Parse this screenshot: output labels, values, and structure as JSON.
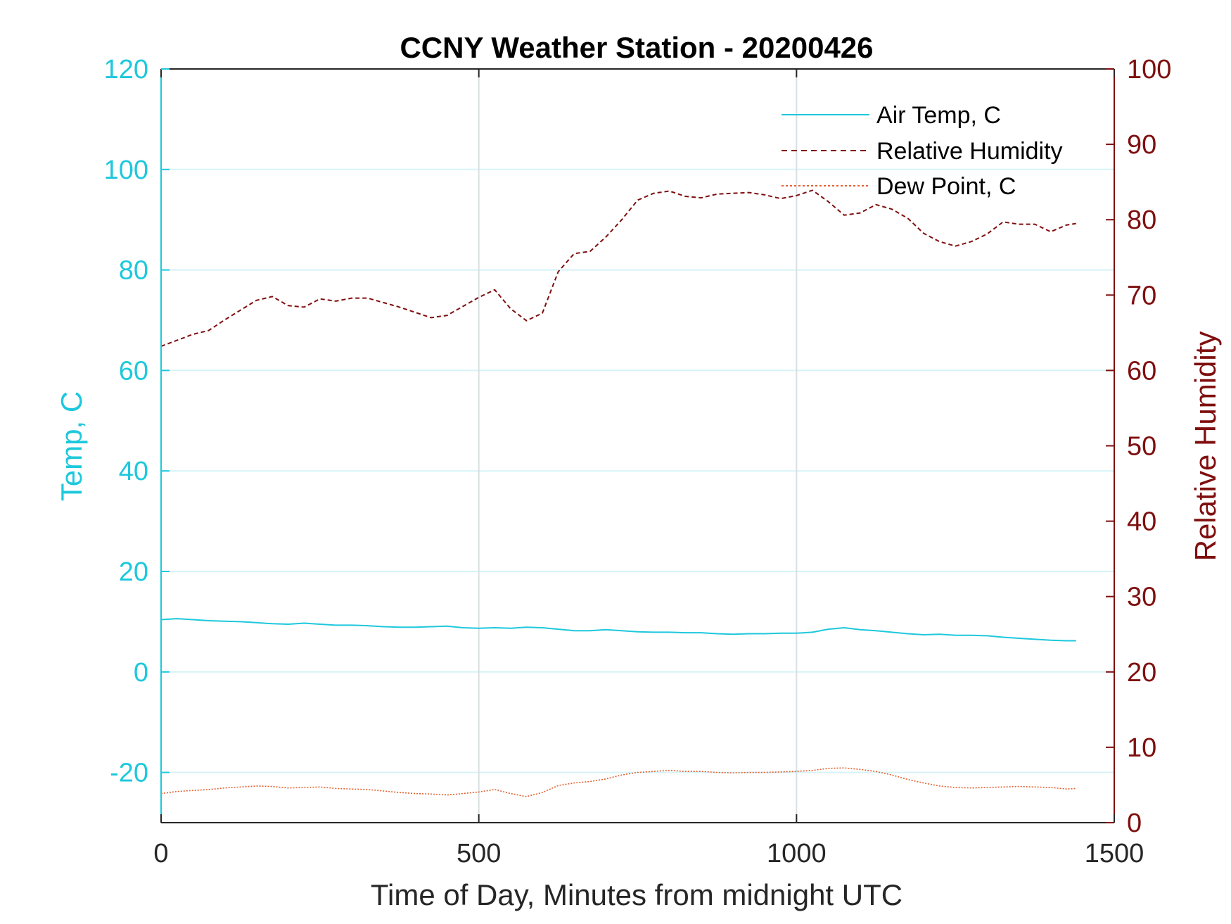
{
  "chart_data": {
    "type": "line",
    "title": "CCNY Weather Station - 20200426",
    "xlabel": "Time of Day, Minutes from midnight UTC",
    "ylabel_left": "Temp, C",
    "ylabel_right": "Relative Humidity",
    "xlim": [
      0,
      1500
    ],
    "ylim_left": [
      -30,
      120
    ],
    "ylim_right": [
      0,
      100
    ],
    "x_ticks": [
      "0",
      "500",
      "1000",
      "1500"
    ],
    "y_left_ticks": [
      "-20",
      "0",
      "20",
      "40",
      "60",
      "80",
      "100",
      "120"
    ],
    "y_right_ticks": [
      "0",
      "10",
      "20",
      "30",
      "40",
      "50",
      "60",
      "70",
      "80",
      "90",
      "100"
    ],
    "grid": true,
    "legend_position": "top-right",
    "colors": {
      "left_axis": "#1ec8dc",
      "right_axis": "#7f0f0f",
      "air_temp": "#1ec8dc",
      "humidity": "#7f0f0f",
      "dew_point": "#e2602e",
      "grid_horizontal": "#d6f3f8",
      "grid_vertical": "#d9dee2"
    },
    "series": [
      {
        "name": "Air Temp, C",
        "axis": "left",
        "style": "solid",
        "x": [
          0,
          25,
          50,
          75,
          100,
          125,
          150,
          175,
          200,
          225,
          250,
          275,
          300,
          325,
          350,
          375,
          400,
          425,
          450,
          475,
          500,
          525,
          550,
          575,
          600,
          625,
          650,
          675,
          700,
          725,
          750,
          775,
          800,
          825,
          850,
          875,
          900,
          925,
          950,
          975,
          1000,
          1025,
          1050,
          1075,
          1100,
          1125,
          1150,
          1175,
          1200,
          1225,
          1250,
          1275,
          1300,
          1325,
          1350,
          1375,
          1400,
          1425,
          1440
        ],
        "y": [
          10.4,
          10.6,
          10.4,
          10.2,
          10.1,
          10.0,
          9.8,
          9.6,
          9.5,
          9.7,
          9.5,
          9.3,
          9.3,
          9.2,
          9.0,
          8.9,
          8.9,
          9.0,
          9.1,
          8.8,
          8.7,
          8.8,
          8.7,
          8.9,
          8.8,
          8.5,
          8.2,
          8.2,
          8.4,
          8.2,
          8.0,
          7.9,
          7.9,
          7.8,
          7.8,
          7.6,
          7.5,
          7.6,
          7.6,
          7.7,
          7.7,
          7.9,
          8.5,
          8.8,
          8.4,
          8.2,
          7.9,
          7.6,
          7.4,
          7.5,
          7.3,
          7.3,
          7.2,
          6.9,
          6.7,
          6.5,
          6.3,
          6.2,
          6.2
        ]
      },
      {
        "name": "Relative Humidity",
        "axis": "right",
        "style": "dashed",
        "x": [
          0,
          25,
          50,
          75,
          100,
          125,
          150,
          175,
          200,
          225,
          250,
          275,
          300,
          325,
          350,
          375,
          400,
          425,
          450,
          475,
          500,
          525,
          550,
          575,
          600,
          625,
          650,
          675,
          700,
          725,
          750,
          775,
          800,
          825,
          850,
          875,
          900,
          925,
          950,
          975,
          1000,
          1025,
          1050,
          1075,
          1100,
          1125,
          1150,
          1175,
          1200,
          1225,
          1250,
          1275,
          1300,
          1325,
          1350,
          1375,
          1400,
          1425,
          1440
        ],
        "y": [
          63.2,
          64.0,
          64.8,
          65.3,
          66.7,
          68.0,
          69.3,
          69.8,
          68.6,
          68.4,
          69.5,
          69.2,
          69.6,
          69.6,
          69.0,
          68.4,
          67.7,
          67.0,
          67.3,
          68.5,
          69.7,
          70.7,
          68.2,
          66.6,
          67.6,
          73.1,
          75.5,
          75.8,
          77.7,
          80.0,
          82.6,
          83.5,
          83.8,
          83.1,
          82.9,
          83.4,
          83.5,
          83.6,
          83.3,
          82.8,
          83.2,
          83.9,
          82.4,
          80.6,
          80.9,
          82.0,
          81.4,
          80.2,
          78.2,
          77.1,
          76.5,
          77.1,
          78.1,
          79.7,
          79.4,
          79.4,
          78.4,
          79.3,
          79.5
        ]
      },
      {
        "name": "Dew Point, C",
        "axis": "left",
        "style": "dotted",
        "x": [
          0,
          25,
          50,
          75,
          100,
          125,
          150,
          175,
          200,
          225,
          250,
          275,
          300,
          325,
          350,
          375,
          400,
          425,
          450,
          475,
          500,
          525,
          550,
          575,
          600,
          625,
          650,
          675,
          700,
          725,
          750,
          775,
          800,
          825,
          850,
          875,
          900,
          925,
          950,
          975,
          1000,
          1025,
          1050,
          1075,
          1100,
          1125,
          1150,
          1175,
          1200,
          1225,
          1250,
          1275,
          1300,
          1325,
          1350,
          1375,
          1400,
          1425,
          1440
        ],
        "y": [
          -24.2,
          -23.8,
          -23.6,
          -23.4,
          -23.1,
          -22.9,
          -22.7,
          -22.8,
          -23.1,
          -23.0,
          -22.9,
          -23.2,
          -23.3,
          -23.4,
          -23.7,
          -24.0,
          -24.2,
          -24.3,
          -24.5,
          -24.2,
          -23.9,
          -23.4,
          -24.2,
          -24.8,
          -24.0,
          -22.6,
          -22.1,
          -21.8,
          -21.3,
          -20.5,
          -20.0,
          -19.8,
          -19.6,
          -19.8,
          -19.8,
          -20.0,
          -20.1,
          -20.0,
          -20.0,
          -19.9,
          -19.8,
          -19.6,
          -19.2,
          -19.1,
          -19.4,
          -19.8,
          -20.5,
          -21.4,
          -22.1,
          -22.7,
          -23.0,
          -23.1,
          -23.0,
          -22.9,
          -22.8,
          -22.9,
          -23.0,
          -23.3,
          -23.2
        ]
      }
    ]
  }
}
